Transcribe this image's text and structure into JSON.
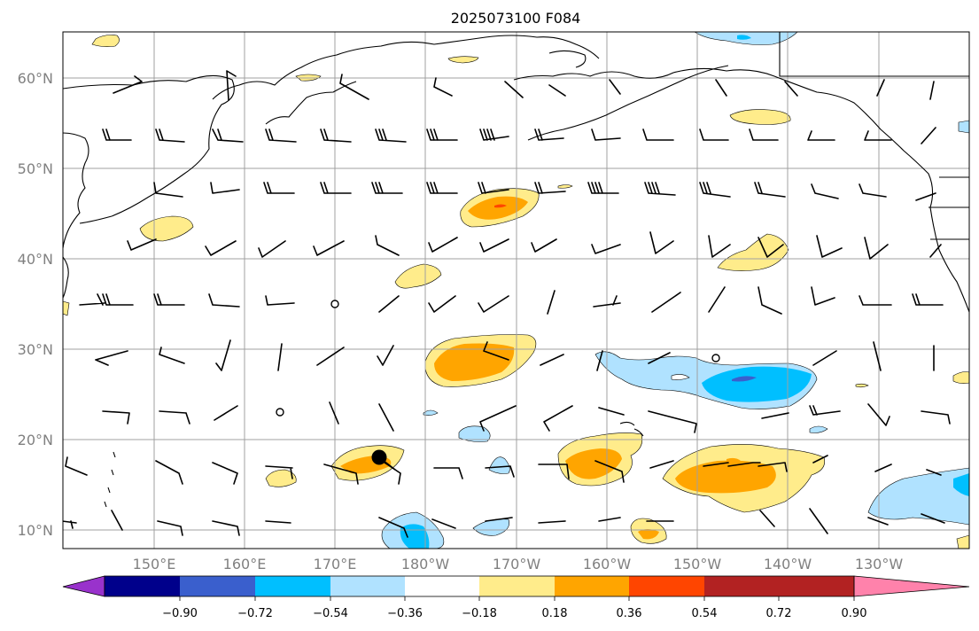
{
  "title": "2025073100 F084",
  "lat_labels": [
    "60°N",
    "50°N",
    "40°N",
    "30°N",
    "20°N",
    "10°N"
  ],
  "lon_labels": [
    "150°E",
    "160°E",
    "170°E",
    "180°W",
    "170°W",
    "160°W",
    "150°W",
    "140°W",
    "130°W"
  ],
  "colorbar": {
    "tick_labels": [
      "−0.90",
      "−0.72",
      "−0.54",
      "−0.36",
      "−0.18",
      "0.18",
      "0.36",
      "0.54",
      "0.72",
      "0.90"
    ],
    "colors": [
      "#9932cc",
      "#00008b",
      "#3a5fcd",
      "#00bfff",
      "#b0e2ff",
      "#ffffff",
      "#ffec8b",
      "#ffa500",
      "#ff4500",
      "#b22222",
      "#ff82ab"
    ]
  },
  "map": {
    "projection": "cylindrical",
    "lon_range": [
      "140°E",
      "120°W"
    ],
    "lat_range": [
      "8°N",
      "65°N"
    ],
    "grid": true,
    "field": "shaded anomaly contours with wind barbs",
    "storm_marker": "black dot near 18°N 175°E"
  }
}
